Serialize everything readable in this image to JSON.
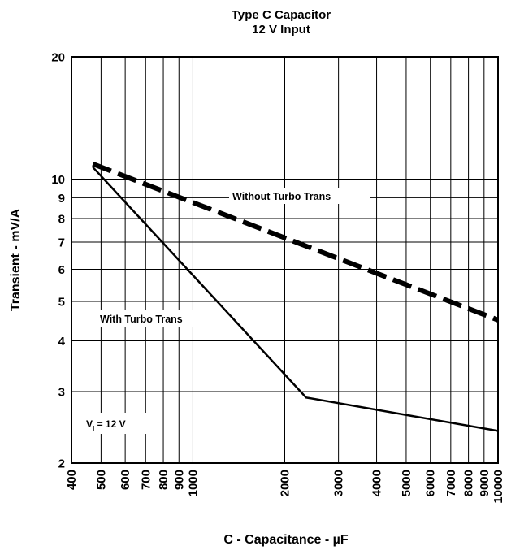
{
  "chart_data": {
    "type": "line",
    "title": "Type C Capacitor",
    "subtitle": "12 V Input",
    "xlabel": "C - Capacitance - µF",
    "ylabel": "Transient - mV/A",
    "x_scale": "log",
    "y_scale": "log",
    "xlim": [
      400,
      10000
    ],
    "ylim": [
      2,
      20
    ],
    "grid": true,
    "x_ticks": [
      400,
      500,
      600,
      700,
      800,
      900,
      1000,
      2000,
      3000,
      4000,
      5000,
      6000,
      7000,
      8000,
      9000,
      10000
    ],
    "x_tick_labels": [
      "400",
      "500",
      "600",
      "700",
      "800",
      "900",
      "1000",
      "2000",
      "3000",
      "4000",
      "5000",
      "6000",
      "7000",
      "8000",
      "9000",
      "10000"
    ],
    "y_ticks": [
      2,
      3,
      4,
      5,
      6,
      7,
      8,
      9,
      10,
      20
    ],
    "y_tick_labels": [
      "2",
      "3",
      "4",
      "5",
      "6",
      "7",
      "8",
      "9",
      "10",
      "20"
    ],
    "series": [
      {
        "name": "Without Turbo Trans",
        "style": "dashed",
        "color": "#000000",
        "points": [
          [
            470,
            10.9
          ],
          [
            10000,
            4.5
          ]
        ]
      },
      {
        "name": "With Turbo Trans",
        "style": "solid",
        "color": "#000000",
        "points": [
          [
            470,
            10.7
          ],
          [
            2350,
            2.9
          ],
          [
            10000,
            2.4
          ]
        ]
      }
    ],
    "annotations": {
      "without_label": "Without Turbo Trans",
      "with_label": "With Turbo Trans",
      "vi_prefix": "V",
      "vi_subscript": "I",
      "vi_suffix": " = 12 V"
    }
  }
}
